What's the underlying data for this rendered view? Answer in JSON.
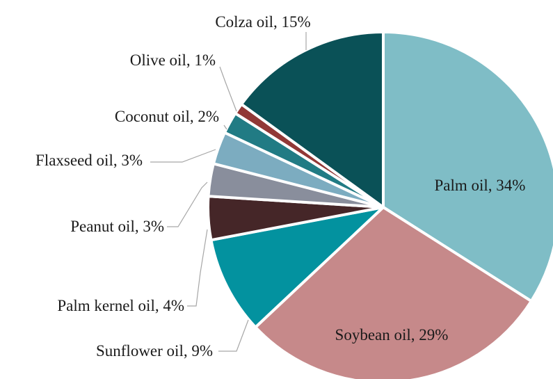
{
  "chart_data": {
    "type": "pie",
    "title": "",
    "start": "12 o'clock",
    "direction": "clockwise",
    "slices": [
      {
        "name": "Palm oil",
        "value": 34,
        "label": "Palm oil, 34%",
        "color": "#7fbdc6",
        "label_placement": "inside"
      },
      {
        "name": "Soybean oil",
        "value": 29,
        "label": "Soybean oil, 29%",
        "color": "#c6898a",
        "label_placement": "inside"
      },
      {
        "name": "Sunflower oil",
        "value": 9,
        "label": "Sunflower oil, 9%",
        "color": "#03929f",
        "label_placement": "outside"
      },
      {
        "name": "Palm kernel oil",
        "value": 4,
        "label": "Palm kernel oil, 4%",
        "color": "#452628",
        "label_placement": "outside"
      },
      {
        "name": "Peanut oil",
        "value": 3,
        "label": "Peanut oil, 3%",
        "color": "#898e9c",
        "label_placement": "outside"
      },
      {
        "name": "Flaxseed oil",
        "value": 3,
        "label": "Flaxseed oil, 3%",
        "color": "#7cacc0",
        "label_placement": "outside"
      },
      {
        "name": "Coconut oil",
        "value": 2,
        "label": "Coconut oil, 2%",
        "color": "#217b84",
        "label_placement": "outside"
      },
      {
        "name": "Olive oil",
        "value": 1,
        "label": "Olive oil, 1%",
        "color": "#913836",
        "label_placement": "outside"
      },
      {
        "name": "Colza oil",
        "value": 15,
        "label": "Colza oil, 15%",
        "color": "#0a5157",
        "label_placement": "outside"
      }
    ]
  }
}
